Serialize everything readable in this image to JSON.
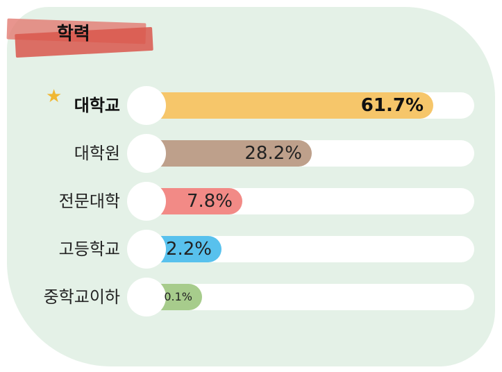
{
  "chart_data": {
    "type": "bar",
    "title": "학력",
    "categories": [
      "대학교",
      "대학원",
      "전문대학",
      "고등학교",
      "중학교이하"
    ],
    "values": [
      61.7,
      28.2,
      7.8,
      2.2,
      0.1
    ],
    "value_labels": [
      "61.7%",
      "28.2%",
      "7.8%",
      "2.2%",
      "0.1%"
    ],
    "colors": [
      "#f6c66a",
      "#bea08b",
      "#f28a86",
      "#58c1ed",
      "#a7cc8c"
    ],
    "highlight_category": "대학교",
    "highlight_icon": "star-icon",
    "xlim": [
      0,
      100
    ],
    "orientation": "horizontal"
  }
}
